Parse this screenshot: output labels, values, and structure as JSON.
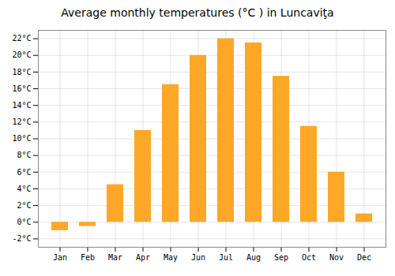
{
  "chart_data": {
    "type": "bar",
    "title": "Average monthly temperatures (°C ) in Luncaviţa",
    "categories": [
      "Jan",
      "Feb",
      "Mar",
      "Apr",
      "May",
      "Jun",
      "Jul",
      "Aug",
      "Sep",
      "Oct",
      "Nov",
      "Dec"
    ],
    "values": [
      -1.0,
      -0.5,
      4.5,
      11.0,
      16.5,
      20.0,
      22.0,
      21.5,
      17.5,
      11.5,
      6.0,
      1.0
    ],
    "color": "#FFA726",
    "ylim": [
      -3,
      23
    ],
    "yticks": [
      {
        "value": -2,
        "label": "-2°C"
      },
      {
        "value": 0,
        "label": "0°C"
      },
      {
        "value": 2,
        "label": "2°C"
      },
      {
        "value": 4,
        "label": "4°C"
      },
      {
        "value": 6,
        "label": "6°C"
      },
      {
        "value": 8,
        "label": "8°C"
      },
      {
        "value": 10,
        "label": "10°C"
      },
      {
        "value": 12,
        "label": "12°C"
      },
      {
        "value": 14,
        "label": "14°C"
      },
      {
        "value": 16,
        "label": "16°C"
      },
      {
        "value": 18,
        "label": "18°C"
      },
      {
        "value": 20,
        "label": "20°C"
      },
      {
        "value": 22,
        "label": "22°C"
      }
    ],
    "grid": true
  }
}
